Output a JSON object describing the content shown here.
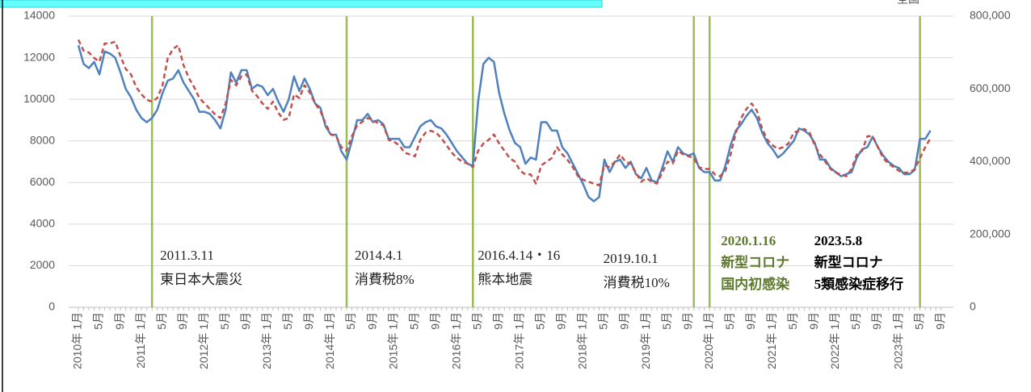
{
  "chart_data": {
    "type": "line",
    "corner_label": "全国",
    "categories": [
      "2010年 1月",
      null,
      null,
      null,
      "5月",
      null,
      null,
      null,
      "9月",
      null,
      null,
      null,
      "2011年 1月",
      null,
      null,
      null,
      "5月",
      null,
      null,
      null,
      "9月",
      null,
      null,
      null,
      "2012年 1月",
      null,
      null,
      null,
      "5月",
      null,
      null,
      null,
      "9月",
      null,
      null,
      null,
      "2013年 1月",
      null,
      null,
      null,
      "5月",
      null,
      null,
      null,
      "9月",
      null,
      null,
      null,
      "2014年 1月",
      null,
      null,
      null,
      "5月",
      null,
      null,
      null,
      "9月",
      null,
      null,
      null,
      "2015年 1月",
      null,
      null,
      null,
      "5月",
      null,
      null,
      null,
      "9月",
      null,
      null,
      null,
      "2016年 1月",
      null,
      null,
      null,
      "5月",
      null,
      null,
      null,
      "9月",
      null,
      null,
      null,
      "2017年 1月",
      null,
      null,
      null,
      "5月",
      null,
      null,
      null,
      "9月",
      null,
      null,
      null,
      "2018年 1月",
      null,
      null,
      null,
      "5月",
      null,
      null,
      null,
      "9月",
      null,
      null,
      null,
      "2019年 1月",
      null,
      null,
      null,
      "5月",
      null,
      null,
      null,
      "9月",
      null,
      null,
      null,
      "2020年 1月",
      null,
      null,
      null,
      "5月",
      null,
      null,
      null,
      "9月",
      null,
      null,
      null,
      "2021年 1月",
      null,
      null,
      null,
      "5月",
      null,
      null,
      null,
      "9月",
      null,
      null,
      null,
      "2022年 1月",
      null,
      null,
      null,
      "5月",
      null,
      null,
      null,
      "9月",
      null,
      null,
      null,
      "2023年 1月",
      null,
      null,
      null,
      "5月",
      null,
      null,
      null,
      "9月"
    ],
    "series": [
      {
        "color": "#4f81bd",
        "axis": "y",
        "dashed": false,
        "values": [
          12600,
          11700,
          11500,
          11800,
          11200,
          12300,
          12200,
          12000,
          11300,
          10500,
          10100,
          9500,
          9100,
          8900,
          9100,
          9500,
          10300,
          10900,
          11000,
          11400,
          10800,
          10400,
          10000,
          9400,
          9400,
          9300,
          9000,
          8600,
          9500,
          11300,
          10800,
          11400,
          11400,
          10500,
          10700,
          10600,
          10200,
          10500,
          9900,
          9400,
          10000,
          11100,
          10400,
          11000,
          10500,
          9800,
          9600,
          8700,
          8300,
          8300,
          7500,
          7100,
          8000,
          9000,
          9000,
          9300,
          8900,
          9000,
          8800,
          8100,
          8100,
          8100,
          7700,
          7700,
          8200,
          8700,
          8900,
          9000,
          8700,
          8600,
          8300,
          7900,
          7500,
          7200,
          6900,
          6800,
          9900,
          11700,
          12000,
          11800,
          10300,
          9300,
          8500,
          7900,
          7700,
          6900,
          7200,
          7100,
          8900,
          8900,
          8500,
          8500,
          7700,
          7400,
          6900,
          6400,
          5900,
          5300,
          5100,
          5300,
          7100,
          6500,
          7000,
          7100,
          6700,
          7000,
          6400,
          6200,
          6700,
          6100,
          6000,
          6700,
          7500,
          7000,
          7700,
          7400,
          7300,
          7400,
          6700,
          6500,
          6500,
          6100,
          6100,
          6800,
          7800,
          8500,
          8800,
          9200,
          9500,
          9100,
          8400,
          7900,
          7600,
          7200,
          7400,
          7700,
          8000,
          8600,
          8500,
          8300,
          7900,
          7100,
          7100,
          6700,
          6500,
          6300,
          6400,
          6500,
          7200,
          7600,
          7700,
          8200,
          7700,
          7300,
          7000,
          6800,
          6700,
          6400,
          6400,
          6600,
          8100,
          8100,
          8500,
          null,
          null
        ]
      },
      {
        "color": "#c0504d",
        "axis": "y2",
        "dashed": true,
        "values": [
          735000,
          705000,
          700000,
          685000,
          675000,
          725000,
          725000,
          730000,
          690000,
          655000,
          640000,
          605000,
          585000,
          570000,
          565000,
          575000,
          610000,
          685000,
          710000,
          720000,
          665000,
          630000,
          605000,
          575000,
          560000,
          545000,
          530000,
          520000,
          560000,
          625000,
          610000,
          635000,
          640000,
          595000,
          580000,
          560000,
          545000,
          565000,
          535000,
          515000,
          520000,
          585000,
          575000,
          610000,
          590000,
          560000,
          540000,
          505000,
          475000,
          470000,
          440000,
          430000,
          470000,
          500000,
          510000,
          520000,
          515000,
          505000,
          500000,
          460000,
          455000,
          445000,
          425000,
          420000,
          415000,
          460000,
          480000,
          485000,
          480000,
          465000,
          445000,
          425000,
          410000,
          400000,
          395000,
          385000,
          430000,
          450000,
          460000,
          475000,
          450000,
          430000,
          410000,
          400000,
          375000,
          365000,
          365000,
          340000,
          390000,
          400000,
          410000,
          440000,
          420000,
          405000,
          385000,
          360000,
          350000,
          345000,
          340000,
          335000,
          390000,
          385000,
          400000,
          420000,
          400000,
          395000,
          370000,
          345000,
          355000,
          345000,
          340000,
          370000,
          400000,
          395000,
          430000,
          420000,
          415000,
          410000,
          385000,
          380000,
          380000,
          365000,
          360000,
          375000,
          420000,
          480000,
          520000,
          545000,
          560000,
          540000,
          490000,
          460000,
          445000,
          435000,
          440000,
          450000,
          480000,
          485000,
          490000,
          480000,
          445000,
          420000,
          400000,
          380000,
          370000,
          365000,
          360000,
          380000,
          420000,
          430000,
          470000,
          470000,
          440000,
          410000,
          395000,
          385000,
          375000,
          370000,
          370000,
          380000,
          410000,
          440000,
          465000,
          null,
          null
        ]
      }
    ],
    "ylim": [
      0,
      14000
    ],
    "yticks": [
      0,
      2000,
      4000,
      6000,
      8000,
      10000,
      12000,
      14000
    ],
    "y2lim": [
      0,
      800000
    ],
    "y2ticks": [
      0,
      {
        "value": 200000,
        "label": "200,000"
      },
      {
        "value": 400000,
        "label": "400,000"
      },
      {
        "value": 600000,
        "label": "600,000"
      },
      {
        "value": 800000,
        "label": "800,000"
      }
    ],
    "grid": true,
    "event_color": "#9bbb59",
    "annotations": [
      {
        "lines": [
          "2011.3.11",
          "東日本大震災"
        ]
      },
      {
        "lines": [
          "2014.4.1",
          "消費税8%"
        ]
      },
      {
        "lines": [
          "2016.4.14・16",
          "熊本地震"
        ]
      },
      {
        "lines": [
          "2019.10.1",
          "消費税10%"
        ]
      },
      {
        "lines": [
          "2020.1.16",
          "新型コロナ",
          "国内初感染"
        ],
        "color": "#5f7a2c",
        "bold": true
      },
      {
        "lines": [
          "2023.5.8",
          "新型コロナ",
          "5類感染症移行"
        ],
        "color": "#000000",
        "bold": true
      }
    ]
  }
}
